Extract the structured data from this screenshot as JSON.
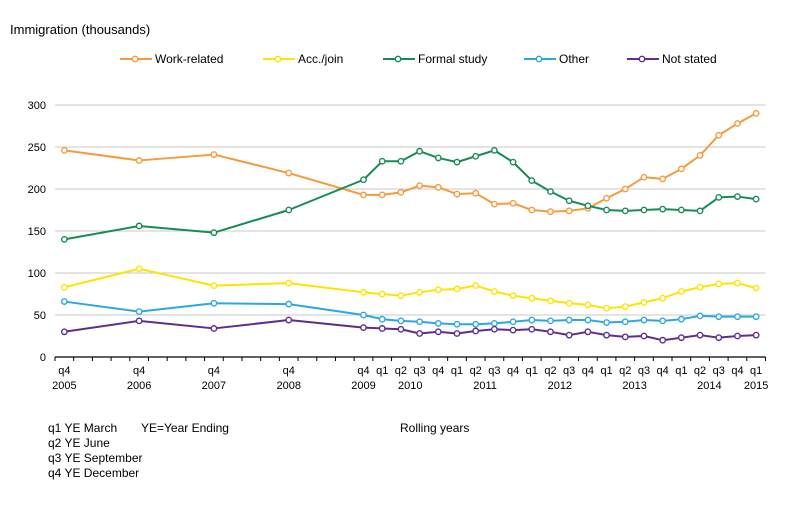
{
  "chart_data": {
    "type": "line",
    "title": "Immigration (thousands)",
    "grid": "horizontal",
    "legend_position": "top",
    "y_axis": {
      "min": 0,
      "max": 300,
      "ticks": [
        0,
        50,
        100,
        150,
        200,
        250,
        300
      ]
    },
    "x_axis": {
      "total_quarter_slots": 38,
      "first_quarter": "q4 2005",
      "last_quarter": "q1 2015",
      "year_labels": [
        {
          "text": "2005",
          "slot": 0
        },
        {
          "text": "2006",
          "slot": 4
        },
        {
          "text": "2007",
          "slot": 8
        },
        {
          "text": "2008",
          "slot": 12
        },
        {
          "text": "2009",
          "slot": 16
        },
        {
          "text": "2010",
          "slot": 18.5
        },
        {
          "text": "2011",
          "slot": 22.5
        },
        {
          "text": "2012",
          "slot": 26.5
        },
        {
          "text": "2013",
          "slot": 30.5
        },
        {
          "text": "2014",
          "slot": 34.5
        },
        {
          "text": "2015",
          "slot": 37
        }
      ]
    },
    "x_points": [
      "q4 2005",
      "q4 2006",
      "q4 2007",
      "q4 2008",
      "q4 2009",
      "q1 2010",
      "q2 2010",
      "q3 2010",
      "q4 2010",
      "q1 2011",
      "q2 2011",
      "q3 2011",
      "q4 2011",
      "q1 2012",
      "q2 2012",
      "q3 2012",
      "q4 2012",
      "q1 2013",
      "q2 2013",
      "q3 2013",
      "q4 2013",
      "q1 2014",
      "q2 2014",
      "q3 2014",
      "q4 2014",
      "q1 2015"
    ],
    "series": [
      {
        "name": "Work-related",
        "color": "#F59B3C",
        "values": [
          246,
          234,
          241,
          219,
          193,
          193,
          196,
          204,
          202,
          194,
          195,
          182,
          183,
          175,
          173,
          174,
          177,
          189,
          200,
          214,
          212,
          224,
          240,
          264,
          278,
          290
        ]
      },
      {
        "name": "Acc./join",
        "color": "#FFE300",
        "values": [
          83,
          105,
          85,
          88,
          77,
          75,
          73,
          77,
          80,
          81,
          85,
          78,
          73,
          70,
          67,
          64,
          62,
          58,
          60,
          65,
          70,
          78,
          83,
          87,
          88,
          82
        ]
      },
      {
        "name": "Formal study",
        "color": "#178B57",
        "values": [
          140,
          156,
          148,
          175,
          211,
          233,
          233,
          245,
          237,
          232,
          239,
          246,
          232,
          210,
          197,
          186,
          180,
          175,
          174,
          175,
          176,
          175,
          174,
          190,
          191,
          188
        ]
      },
      {
        "name": "Other",
        "color": "#2BA9DF",
        "values": [
          66,
          54,
          64,
          63,
          50,
          45,
          43,
          42,
          40,
          39,
          39,
          40,
          42,
          44,
          43,
          44,
          44,
          41,
          42,
          44,
          43,
          45,
          49,
          48,
          48,
          48
        ]
      },
      {
        "name": "Not stated",
        "color": "#5E2D8F",
        "values": [
          30,
          43,
          34,
          44,
          35,
          34,
          33,
          28,
          30,
          28,
          31,
          33,
          32,
          33,
          30,
          26,
          30,
          26,
          24,
          25,
          20,
          23,
          26,
          23,
          25,
          26
        ]
      }
    ],
    "colors": {
      "gridline": "#C9C9C9",
      "axis": "#000000"
    }
  },
  "footnotes": {
    "line1_left": "q1 YE March",
    "line1_mid": "YE=Year Ending",
    "rolling_label": "Rolling years",
    "line2": "q2 YE June",
    "line3": "q3 YE September",
    "line4": "q4 YE December"
  }
}
